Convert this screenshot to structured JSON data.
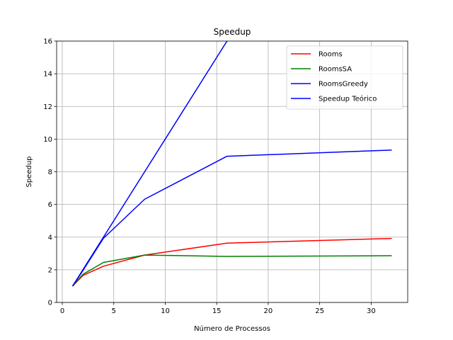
{
  "chart_data": {
    "type": "line",
    "title": "Speedup",
    "xlabel": "Número de Processos",
    "ylabel": "Speedup",
    "xlim": [
      -0.55,
      33.55
    ],
    "ylim": [
      0,
      16
    ],
    "xticks": [
      0,
      5,
      10,
      15,
      20,
      25,
      30
    ],
    "yticks": [
      0,
      2,
      4,
      6,
      8,
      10,
      12,
      14,
      16
    ],
    "grid": true,
    "legend_position": "top-right",
    "series": [
      {
        "name": "Rooms",
        "color": "#ff0000",
        "x": [
          1,
          2,
          4,
          8,
          16,
          32
        ],
        "y": [
          1.0,
          1.65,
          2.22,
          2.9,
          3.63,
          3.92
        ]
      },
      {
        "name": "RoomsSA",
        "color": "#008000",
        "x": [
          1,
          2,
          4,
          8,
          16,
          32
        ],
        "y": [
          1.0,
          1.72,
          2.45,
          2.9,
          2.82,
          2.86
        ]
      },
      {
        "name": "RoomsGreedy",
        "color": "#0000ff",
        "x": [
          1,
          2,
          4,
          8,
          16,
          32
        ],
        "y": [
          1.0,
          1.95,
          3.93,
          6.32,
          8.95,
          9.33
        ]
      },
      {
        "name": "Speedup Teórico",
        "color": "#0000ff",
        "x": [
          1,
          2,
          4,
          8,
          16,
          32
        ],
        "y": [
          1,
          2,
          4,
          8,
          16,
          32
        ]
      }
    ]
  }
}
